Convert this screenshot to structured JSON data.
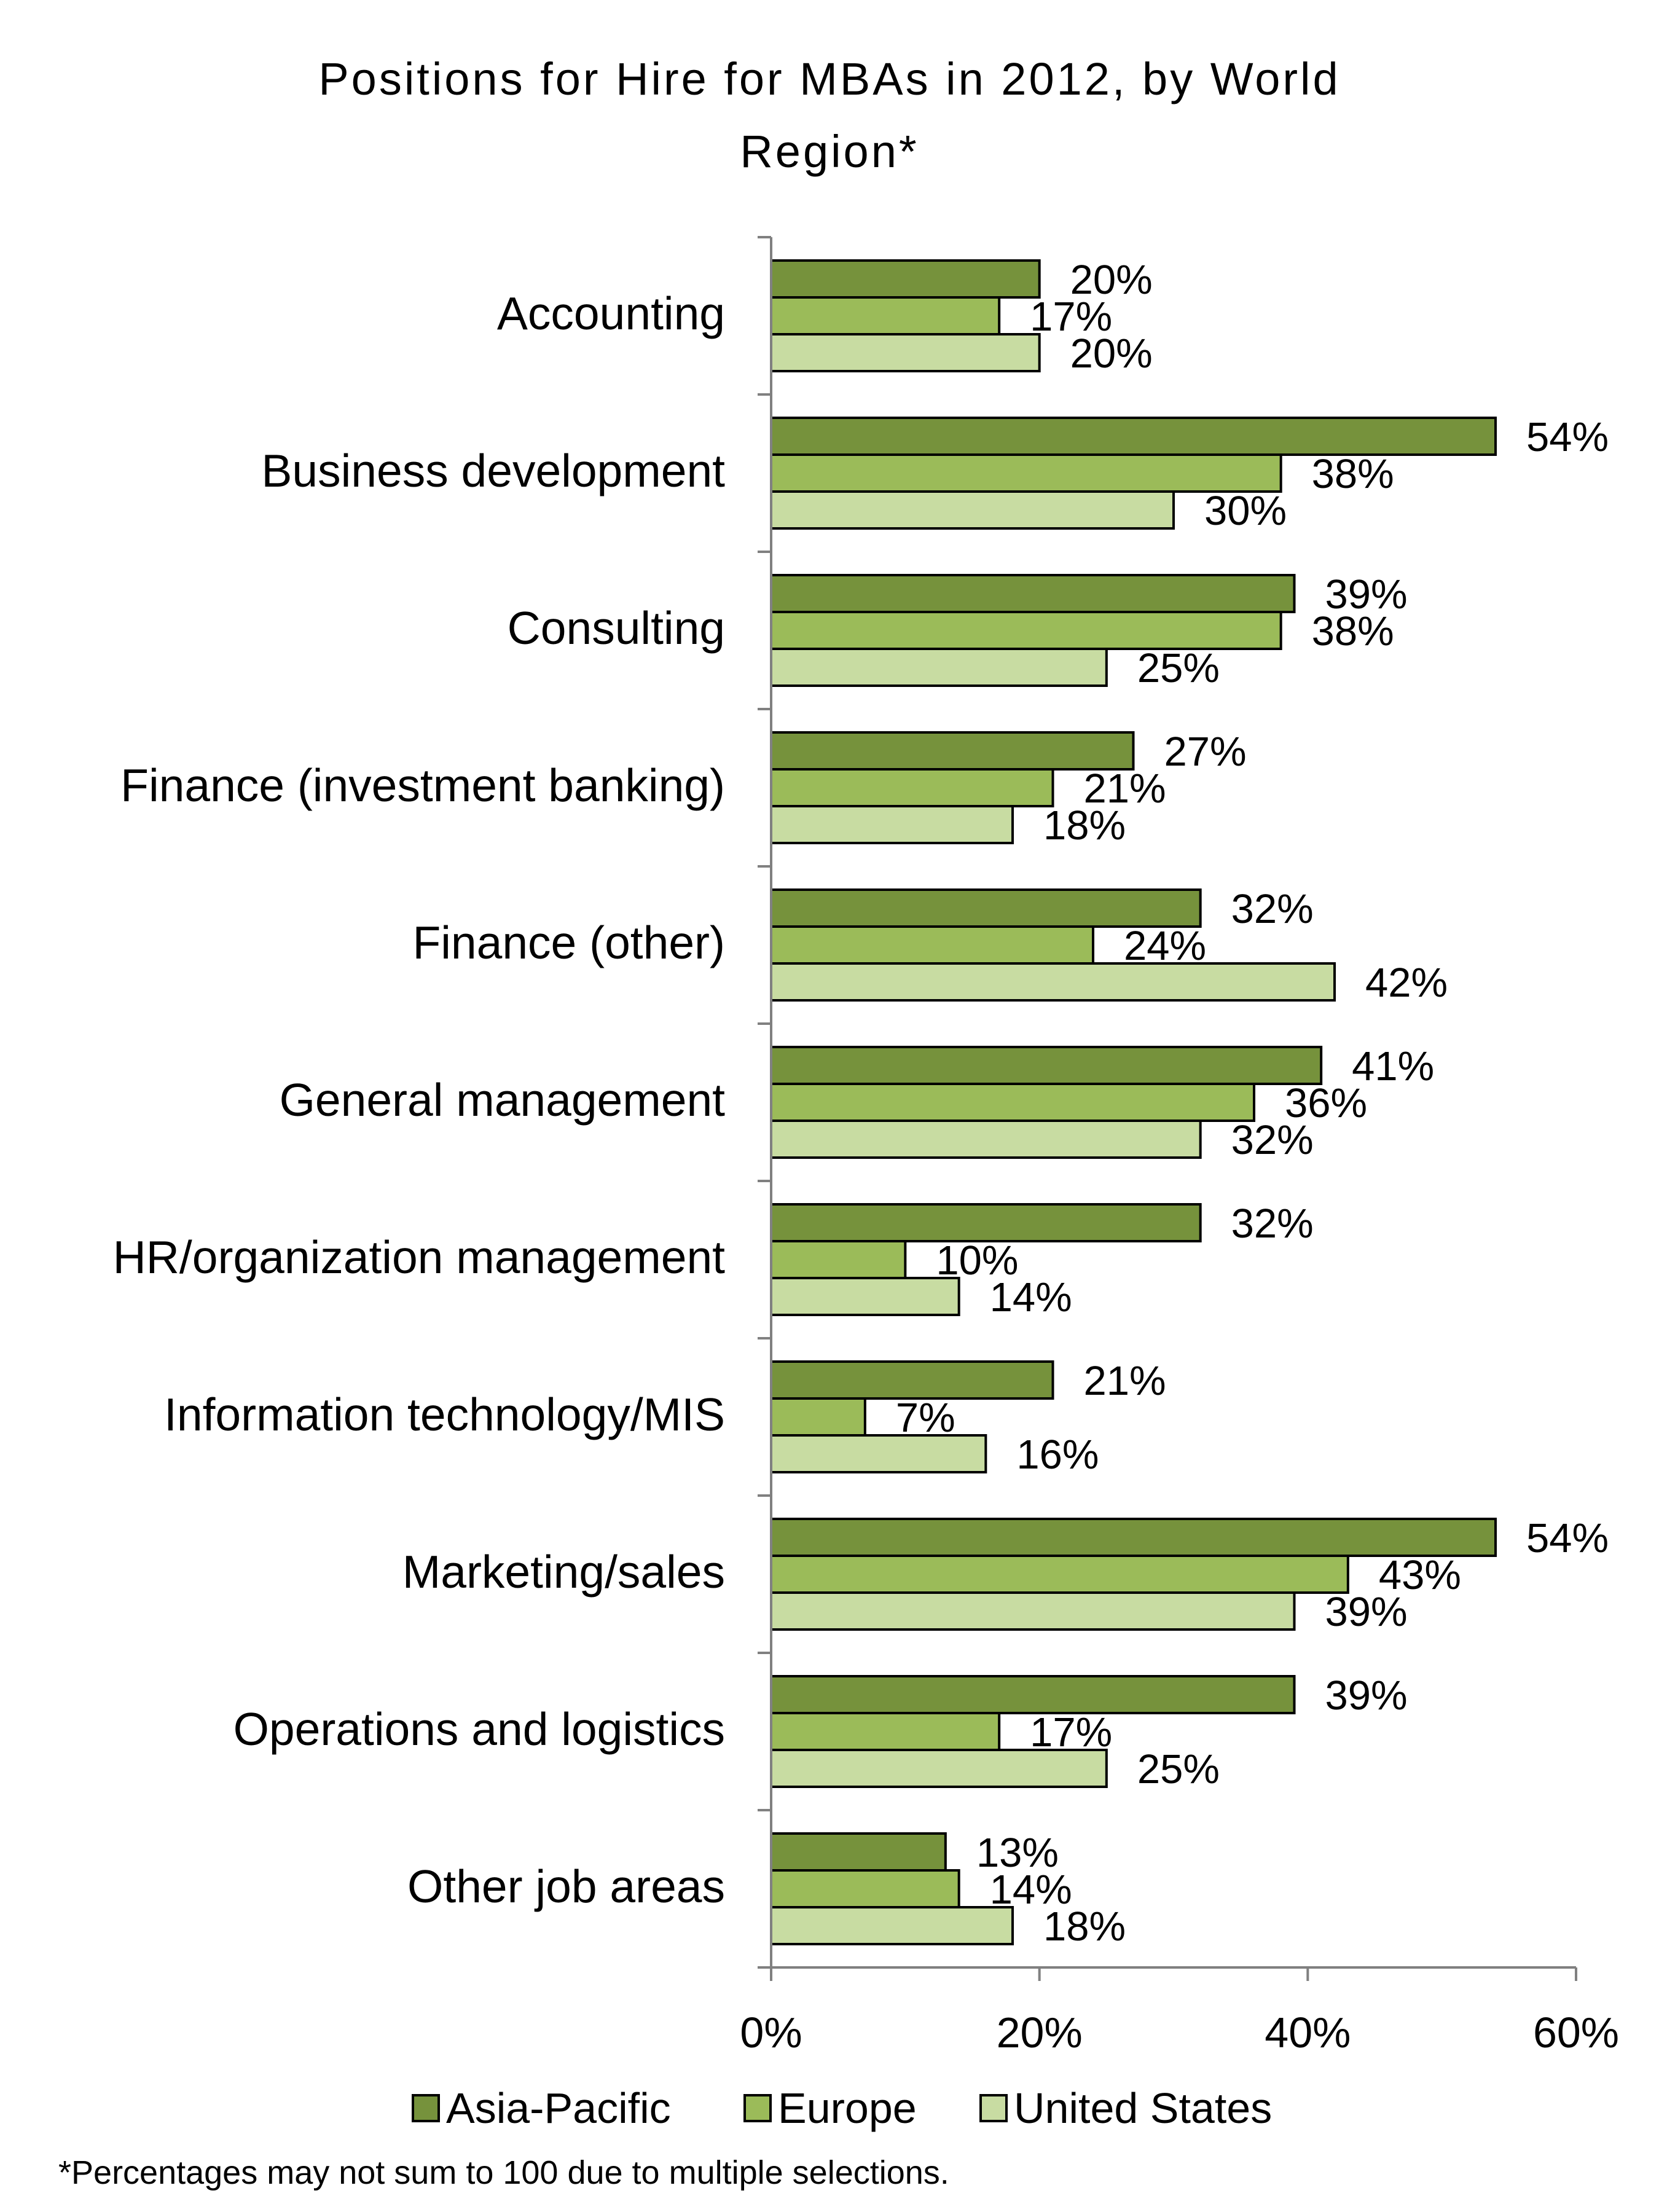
{
  "chart_data": {
    "type": "bar",
    "orientation": "horizontal",
    "title": "Positions for Hire for MBAs in 2012, by World Region*",
    "footnote": "*Percentages may not sum to 100 due to multiple selections.",
    "categories": [
      "Accounting",
      "Business development",
      "Consulting",
      "Finance (investment banking)",
      "Finance (other)",
      "General management",
      "HR/organization management",
      "Information technology/MIS",
      "Marketing/sales",
      "Operations and logistics",
      "Other job areas"
    ],
    "series": [
      {
        "name": "Asia-Pacific",
        "color": "#76923c",
        "values": [
          20,
          54,
          39,
          27,
          32,
          41,
          32,
          21,
          54,
          39,
          13
        ]
      },
      {
        "name": "Europe",
        "color": "#9bbb59",
        "values": [
          17,
          38,
          38,
          21,
          24,
          36,
          10,
          7,
          43,
          17,
          14
        ]
      },
      {
        "name": "United States",
        "color": "#c8dca2",
        "values": [
          20,
          30,
          25,
          18,
          42,
          32,
          14,
          16,
          39,
          25,
          18
        ]
      }
    ],
    "data_labels": [
      [
        "20%",
        "54%",
        "39%",
        "27%",
        "32%",
        "41%",
        "32%",
        "21%",
        "54%",
        "39%",
        "13%"
      ],
      [
        "17%",
        "38%",
        "38%",
        "21%",
        "24%",
        "36%",
        "10%",
        "7%",
        "43%",
        "17%",
        "14%"
      ],
      [
        "20%",
        "30%",
        "25%",
        "18%",
        "42%",
        "32%",
        "14%",
        "16%",
        "39%",
        "25%",
        "18%"
      ]
    ],
    "xlim": [
      0,
      60
    ],
    "xticks": [
      0,
      20,
      40,
      60
    ],
    "xtick_labels": [
      "0%",
      "20%",
      "40%",
      "60%"
    ],
    "xlabel": "",
    "ylabel": "",
    "grid": false,
    "legend_position": "bottom"
  }
}
